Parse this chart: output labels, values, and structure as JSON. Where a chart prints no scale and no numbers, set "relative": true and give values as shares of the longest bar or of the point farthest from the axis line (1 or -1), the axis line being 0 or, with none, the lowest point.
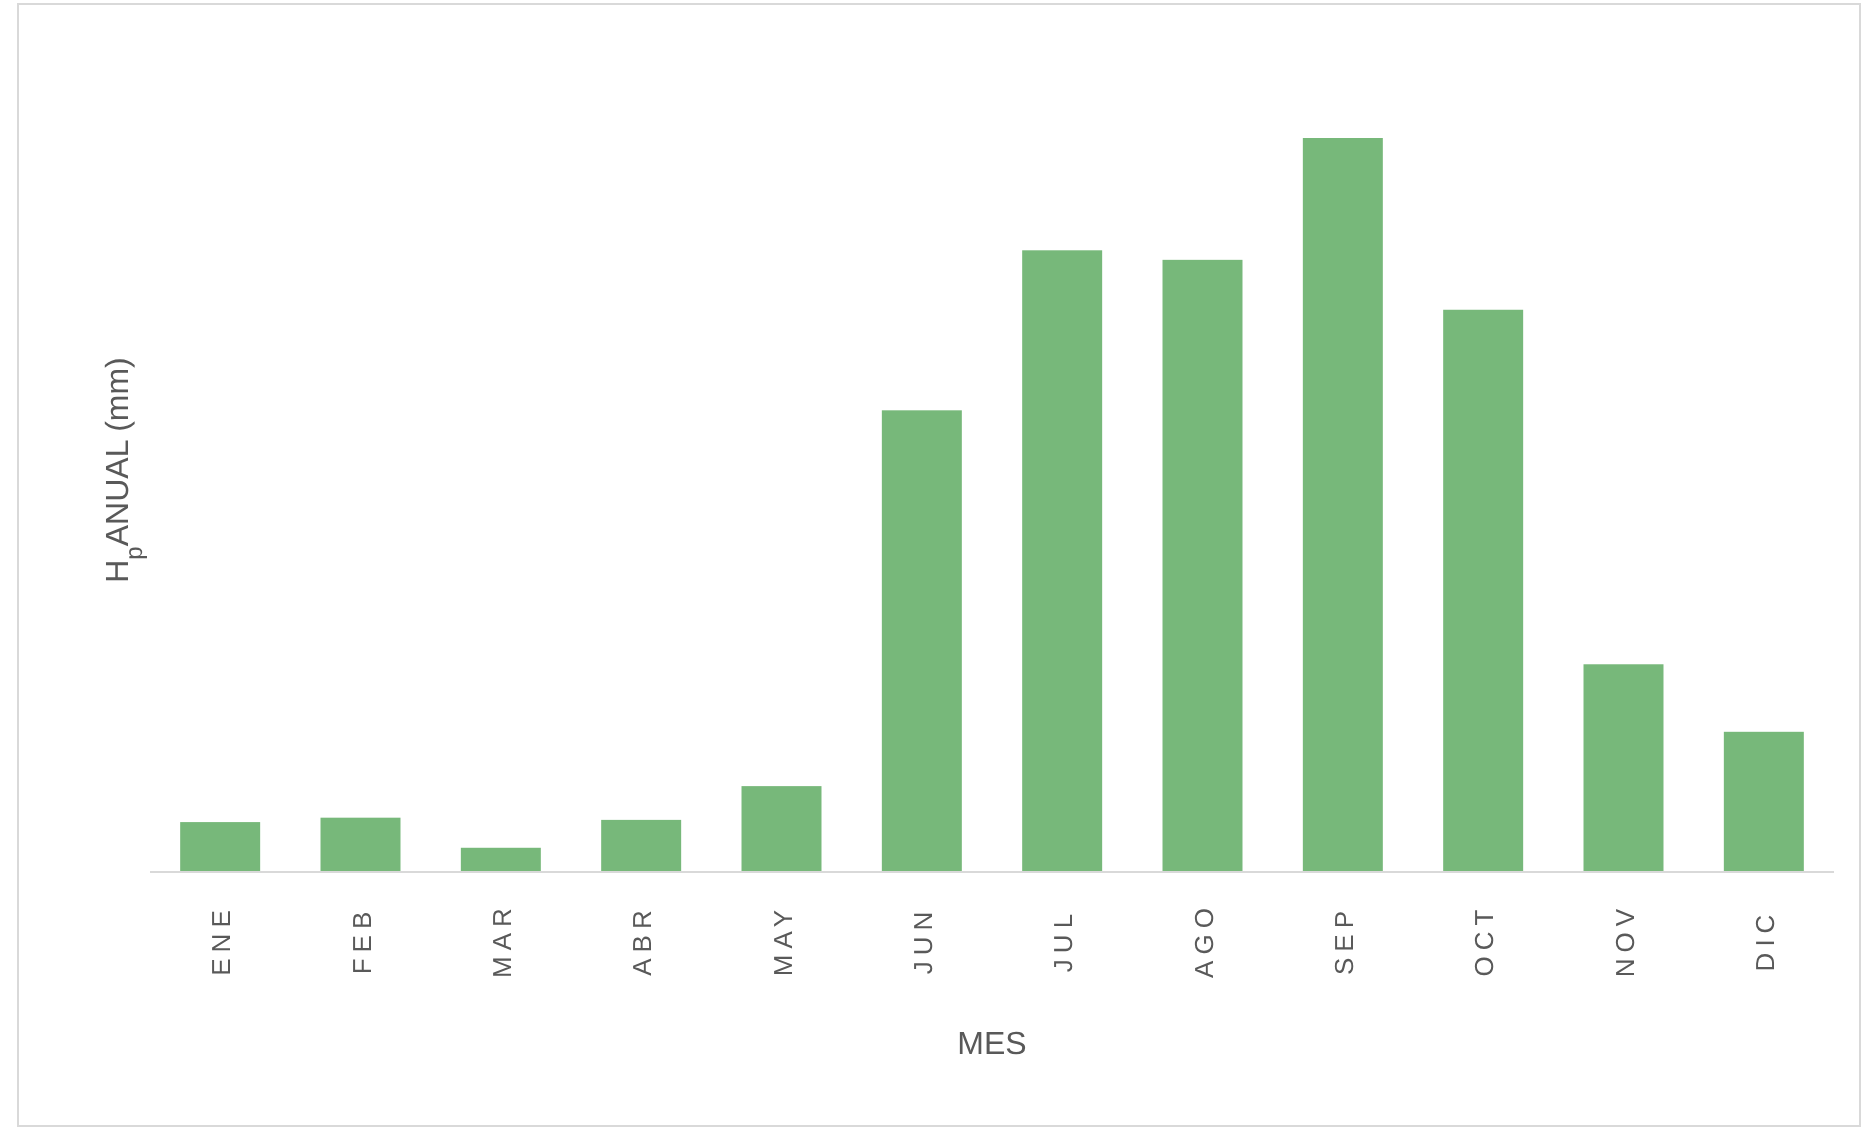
{
  "chart_data": {
    "type": "bar",
    "relative": true,
    "xlabel": "MES",
    "ylabel": "H$_{p}$ANUAL (mm)",
    "categories": [
      "ENE",
      "FEB",
      "MAR",
      "ABR",
      "MAY",
      "JUN",
      "JUL",
      "AGO",
      "SEP",
      "OCT",
      "NOV",
      "DIC"
    ],
    "values": [
      0.068,
      0.074,
      0.033,
      0.071,
      0.117,
      0.629,
      0.847,
      0.834,
      1,
      0.766,
      0.283,
      0.191
    ],
    "color": "#77b87a"
  }
}
